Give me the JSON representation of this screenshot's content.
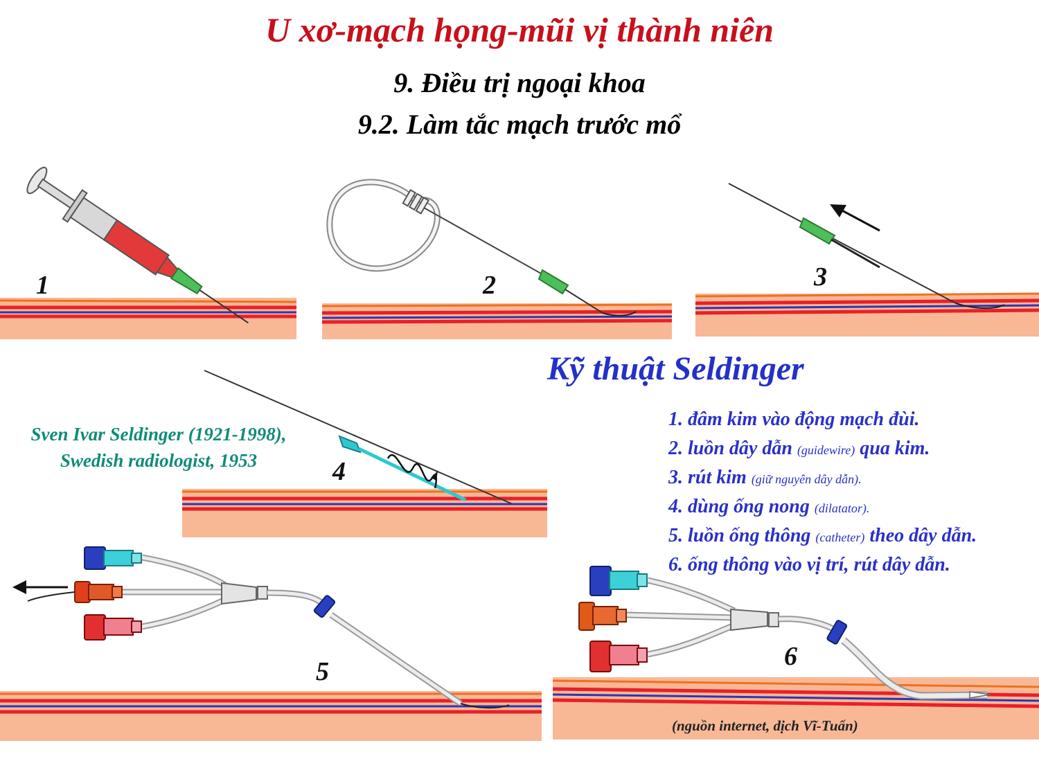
{
  "title": "U xơ-mạch họng-mũi vị thành niên",
  "subtitle_1": "9. Điều trị ngoại khoa",
  "subtitle_2": "9.2. Làm tắc mạch trước mổ",
  "panel_numbers": [
    "1",
    "2",
    "3",
    "4",
    "5",
    "6"
  ],
  "technique_title": "Kỹ thuật Seldinger",
  "credit_line_1": "Sven Ivar Seldinger (1921-1998),",
  "credit_line_2": "Swedish radiologist, 1953",
  "steps": [
    {
      "main": "1. đâm kim vào động mạch đùi.",
      "note": "",
      "after": ""
    },
    {
      "main": "2. luồn dây dẫn ",
      "note": "(guidewire)",
      "after": " qua kim."
    },
    {
      "main": "3. rút kim ",
      "note": "(giữ nguyên dây dẫn).",
      "after": ""
    },
    {
      "main": "4. dùng ống nong ",
      "note": "(dilatator).",
      "after": ""
    },
    {
      "main": "5. luồn ống thông ",
      "note": "(catheter)",
      "after": " theo dây dẫn."
    },
    {
      "main": "6. ống thông vào vị trí, rút dây dẫn.",
      "note": "",
      "after": ""
    }
  ],
  "source_note": "(nguồn internet, dịch Vĩ-Tuấn)",
  "colors": {
    "title_red": "#c8101c",
    "technique_blue": "#2430c8",
    "credit_teal": "#0f8c76",
    "skin": "#f8b896",
    "artery_red": "#e82028",
    "vein_blue": "#2a35b8",
    "needle_hub_green": "#4cbf5a",
    "dilator_cyan": "#2ec8d0"
  }
}
